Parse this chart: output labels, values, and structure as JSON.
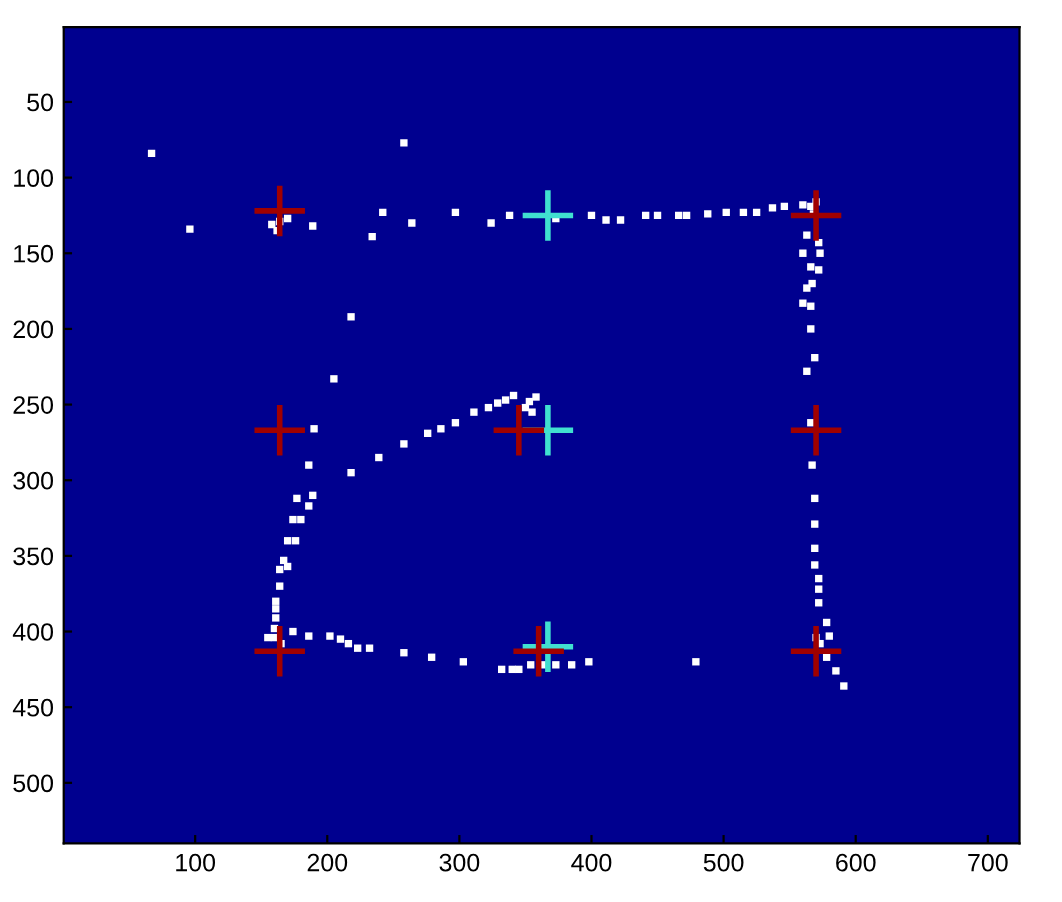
{
  "chart_data": {
    "type": "scatter",
    "xlim": [
      0.5,
      724
    ],
    "ylim": [
      540,
      0.5
    ],
    "xticks": [
      100,
      200,
      300,
      400,
      500,
      600,
      700
    ],
    "yticks": [
      50,
      100,
      150,
      200,
      250,
      300,
      350,
      400,
      450,
      500
    ],
    "series": [
      {
        "marker": "square",
        "color": "#ffffff",
        "x": [
          67,
          258,
          164,
          96,
          189,
          242,
          234,
          264,
          297,
          324,
          338,
          218,
          205,
          190,
          239,
          258,
          276,
          286,
          297,
          311,
          322,
          329,
          335,
          341,
          353,
          373,
          400,
          411,
          422,
          441,
          450,
          466,
          472,
          488,
          502,
          515,
          525,
          537,
          546,
          566,
          563,
          572,
          560,
          573,
          566,
          572,
          563,
          567,
          560,
          566,
          566,
          569,
          563,
          566,
          567,
          569,
          569,
          569,
          569,
          572,
          572,
          572,
          578,
          580,
          573,
          578,
          585,
          591,
          398,
          479,
          385,
          373,
          363,
          186,
          218,
          177,
          189,
          186,
          174,
          180,
          170,
          176,
          167,
          170,
          164,
          164,
          161,
          161,
          161,
          160,
          174,
          186,
          202,
          210,
          216,
          223,
          232,
          258,
          279,
          303,
          332,
          340,
          345,
          354,
          158,
          170,
          162,
          350,
          358,
          355,
          560,
          570,
          568,
          570,
          155,
          165,
          160
        ],
        "values": [
          84,
          77,
          129,
          134,
          132,
          123,
          139,
          130,
          123,
          130,
          125,
          192,
          233,
          266,
          285,
          276,
          269,
          266,
          262,
          255,
          252,
          249,
          247,
          244,
          248,
          127,
          125,
          128,
          128,
          125,
          125,
          125,
          125,
          124,
          123,
          123,
          123,
          120,
          119,
          119,
          138,
          143,
          150,
          150,
          159,
          161,
          173,
          170,
          183,
          185,
          200,
          219,
          228,
          262,
          290,
          312,
          329,
          345,
          356,
          365,
          372,
          381,
          394,
          403,
          408,
          417,
          426,
          436,
          420,
          420,
          422,
          422,
          422,
          290,
          295,
          312,
          310,
          317,
          326,
          326,
          340,
          340,
          353,
          357,
          359,
          370,
          380,
          385,
          391,
          404,
          400,
          403,
          403,
          405,
          408,
          411,
          411,
          414,
          417,
          420,
          425,
          425,
          425,
          422,
          131,
          127,
          135,
          252,
          245,
          255,
          118,
          116,
          124,
          404,
          404,
          408,
          398
        ]
      },
      {
        "marker": "cross",
        "color": "#40e0d0",
        "x": [
          367,
          367,
          367
        ],
        "values": [
          125,
          267,
          410
        ]
      },
      {
        "marker": "cross",
        "color": "#a00000",
        "x": [
          164,
          570,
          164,
          345,
          570,
          164,
          360,
          570
        ],
        "values": [
          122,
          125,
          267,
          267,
          267,
          413,
          413,
          413
        ]
      }
    ]
  }
}
